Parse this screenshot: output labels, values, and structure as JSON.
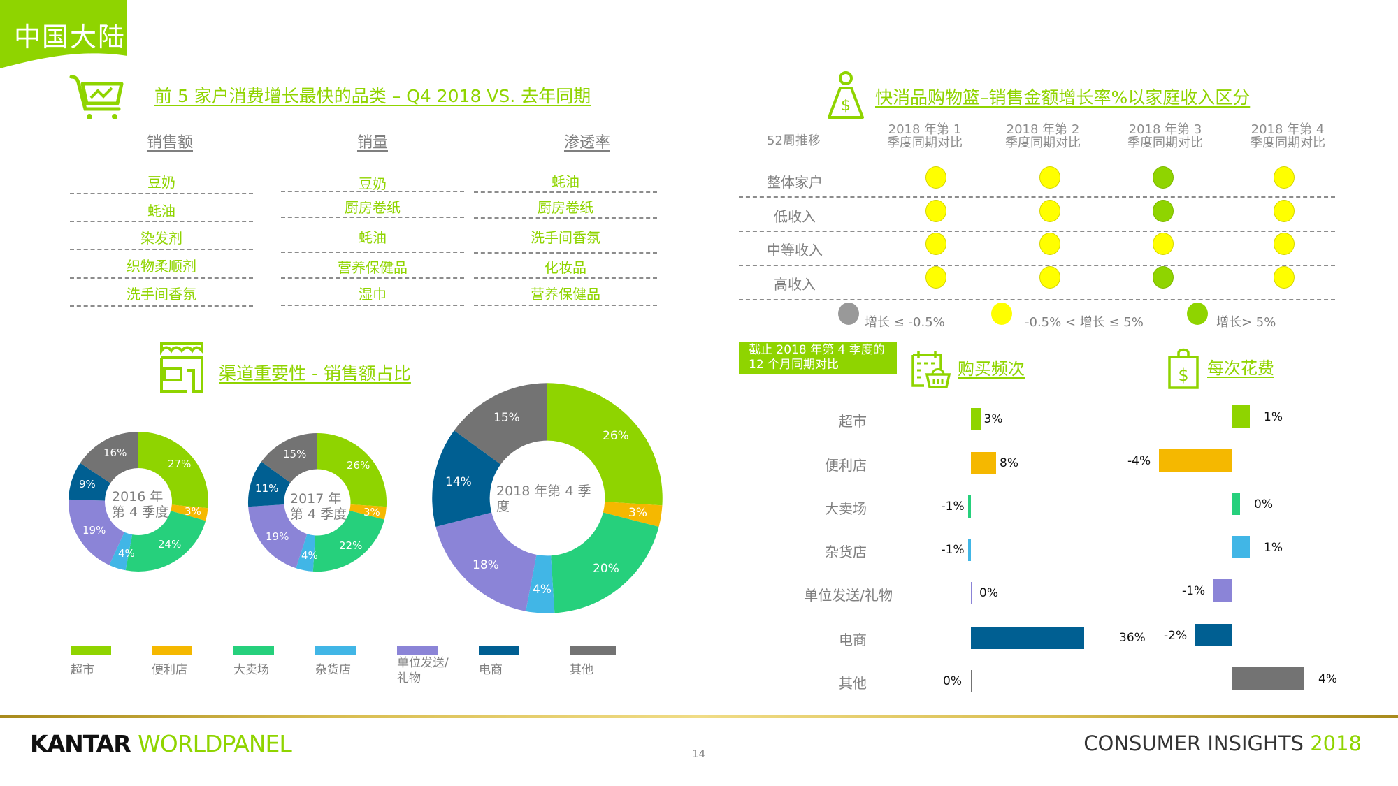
{
  "region_tag": "中国大陆",
  "top_categories": {
    "title": "前 5 家户消费增长最快的品类 – Q4 2018 VS. 去年同期",
    "columns": [
      {
        "header": "销售额",
        "items": [
          "豆奶",
          "蚝油",
          "染发剂",
          "织物柔顺剂",
          "洗手间香氛"
        ]
      },
      {
        "header": "销量",
        "items": [
          "豆奶",
          "厨房卷纸",
          "蚝油",
          "营养保健品",
          "湿巾"
        ]
      },
      {
        "header": "渗透率",
        "items": [
          "蚝油",
          "厨房卷纸",
          "洗手间香氛",
          "化妆品",
          "营养保健品"
        ]
      }
    ]
  },
  "basket_growth": {
    "title": "快消品购物篮–销售金额增长率%以家庭收入区分",
    "corner_label": "52周推移",
    "quarters": [
      {
        "line1": "2018 年第 1",
        "line2": "季度同期对比"
      },
      {
        "line1": "2018 年第 2",
        "line2": "季度同期对比"
      },
      {
        "line1": "2018 年第 3",
        "line2": "季度同期对比"
      },
      {
        "line1": "2018 年第 4",
        "line2": "季度同期对比"
      }
    ],
    "rows": [
      {
        "label": "整体家户",
        "status": [
          "mid",
          "mid",
          "high",
          "mid"
        ]
      },
      {
        "label": "低收入",
        "status": [
          "mid",
          "mid",
          "high",
          "mid"
        ]
      },
      {
        "label": "中等收入",
        "status": [
          "mid",
          "mid",
          "mid",
          "mid"
        ]
      },
      {
        "label": "高收入",
        "status": [
          "mid",
          "mid",
          "high",
          "mid"
        ]
      }
    ],
    "legend": [
      {
        "key": "low",
        "label": "增长 ≤ -0.5%",
        "color": "#999999"
      },
      {
        "key": "mid",
        "label": "-0.5% < 增长 ≤ 5%",
        "color": "#ffff00"
      },
      {
        "key": "high",
        "label": "增长> 5%",
        "color": "#8fd400"
      }
    ]
  },
  "channel_importance": {
    "title": "渠道重要性 - 销售额占比",
    "channels": [
      {
        "name": "超市",
        "color": "#8fd400"
      },
      {
        "name": "便利店",
        "color": "#f5b800"
      },
      {
        "name": "大卖场",
        "color": "#26d07c"
      },
      {
        "name": "杂货店",
        "color": "#41b6e6"
      },
      {
        "name": "单位发送/礼物",
        "color": "#8b84d7"
      },
      {
        "name": "电商",
        "color": "#005f92"
      },
      {
        "name": "其他",
        "color": "#737373"
      }
    ]
  },
  "period_box": {
    "line1": "截止 2018 年第 4 季度的",
    "line2": "12 个月同期对比"
  },
  "frequency": {
    "title": "购买频次"
  },
  "spend": {
    "title": "每次花费"
  },
  "chart_data": [
    {
      "type": "pie",
      "title": "2016 年第 4 季度",
      "categories": [
        "超市",
        "便利店",
        "大卖场",
        "杂货店",
        "单位发送/礼物",
        "电商",
        "其他"
      ],
      "values": [
        27,
        3,
        24,
        4,
        19,
        9,
        16
      ],
      "labels": [
        "27%",
        "3%",
        "24%",
        "4%",
        "19%",
        "9%",
        "16%"
      ],
      "colors": [
        "#8fd400",
        "#f5b800",
        "#26d07c",
        "#41b6e6",
        "#8b84d7",
        "#005f92",
        "#737373"
      ]
    },
    {
      "type": "pie",
      "title": "2017 年第 4 季度",
      "categories": [
        "超市",
        "便利店",
        "大卖场",
        "杂货店",
        "单位发送/礼物",
        "电商",
        "其他"
      ],
      "values": [
        26,
        3,
        22,
        4,
        19,
        11,
        15
      ],
      "labels": [
        "26%",
        "3%",
        "22%",
        "4%",
        "19%",
        "11%",
        "15%"
      ],
      "colors": [
        "#8fd400",
        "#f5b800",
        "#26d07c",
        "#41b6e6",
        "#8b84d7",
        "#005f92",
        "#737373"
      ]
    },
    {
      "type": "pie",
      "title": "2018 年第 4 季度",
      "categories": [
        "超市",
        "便利店",
        "大卖场",
        "杂货店",
        "单位发送/礼物",
        "电商",
        "其他"
      ],
      "values": [
        26,
        3,
        20,
        4,
        18,
        14,
        15
      ],
      "labels": [
        "26%",
        "3%",
        "20%",
        "4%",
        "18%",
        "14%",
        "15%"
      ],
      "colors": [
        "#8fd400",
        "#f5b800",
        "#26d07c",
        "#41b6e6",
        "#8b84d7",
        "#005f92",
        "#737373"
      ]
    },
    {
      "type": "bar",
      "orientation": "horizontal",
      "title": "购买频次",
      "categories": [
        "超市",
        "便利店",
        "大卖场",
        "杂货店",
        "单位发送/礼物",
        "电商",
        "其他"
      ],
      "values": [
        3,
        8,
        -1,
        -1,
        0,
        36,
        0
      ],
      "labels": [
        "3%",
        "8%",
        "-1%",
        "-1%",
        "0%",
        "36%",
        "0%"
      ],
      "colors": [
        "#8fd400",
        "#f5b800",
        "#26d07c",
        "#41b6e6",
        "#8b84d7",
        "#005f92",
        "#737373"
      ]
    },
    {
      "type": "bar",
      "orientation": "horizontal",
      "title": "每次花费",
      "categories": [
        "超市",
        "便利店",
        "大卖场",
        "杂货店",
        "单位发送/礼物",
        "电商",
        "其他"
      ],
      "values": [
        1,
        -4,
        0,
        1,
        -1,
        -2,
        4
      ],
      "labels": [
        "1%",
        "-4%",
        "0%",
        "1%",
        "-1%",
        "-2%",
        "4%"
      ],
      "colors": [
        "#8fd400",
        "#f5b800",
        "#26d07c",
        "#41b6e6",
        "#8b84d7",
        "#005f92",
        "#737373"
      ]
    }
  ],
  "footer": {
    "brand_part1": "KANTAR",
    "brand_part2": "WORLDPANEL",
    "page_number": "14",
    "tagline": "CONSUMER INSIGHTS",
    "tagline_year": "2018"
  }
}
